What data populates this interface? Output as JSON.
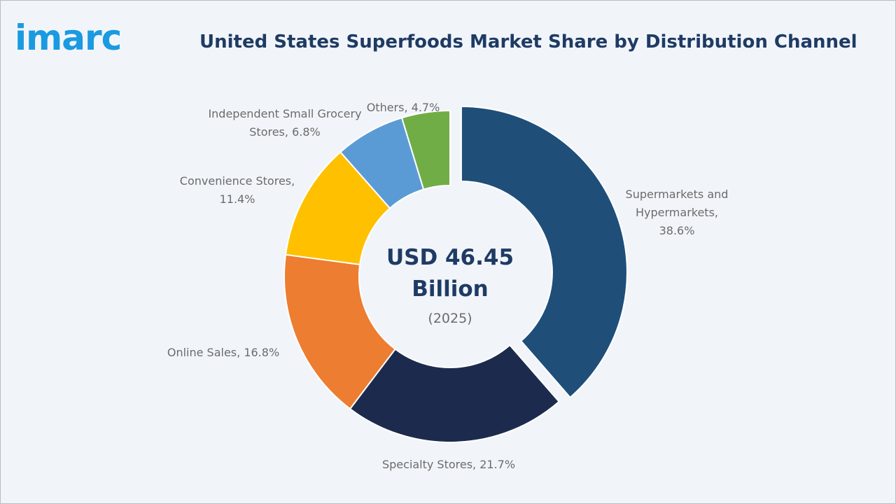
{
  "logo": "imarc",
  "colors": {
    "background": "#f1f5fa",
    "title": "#1f3b64",
    "logo": "#1a9ae0",
    "label": "#6b6b6b"
  },
  "chart_data": {
    "type": "pie",
    "title": "United States Superfoods Market Share by Distribution Channel",
    "center_text": [
      "USD 46.45",
      "Billion"
    ],
    "center_subtext": "(2025)",
    "slices": [
      {
        "name": "Supermarkets and Hypermarkets",
        "value": 38.6,
        "color": "#1f4e79",
        "label_lines": [
          "Supermarkets and",
          "Hypermarkets,",
          "38.6%"
        ],
        "exploded": true
      },
      {
        "name": "Specialty Stores",
        "value": 21.7,
        "color": "#1c2b4d",
        "label_lines": [
          "Specialty Stores, 21.7%"
        ],
        "exploded": false
      },
      {
        "name": "Online Sales",
        "value": 16.8,
        "color": "#ed7d31",
        "label_lines": [
          "Online Sales, 16.8%"
        ],
        "exploded": false
      },
      {
        "name": "Convenience Stores",
        "value": 11.4,
        "color": "#ffc000",
        "label_lines": [
          "Convenience Stores,",
          "11.4%"
        ],
        "exploded": false
      },
      {
        "name": "Independent Small Grocery Stores",
        "value": 6.8,
        "color": "#5b9bd5",
        "label_lines": [
          "Independent Small Grocery",
          "Stores, 6.8%"
        ],
        "exploded": false
      },
      {
        "name": "Others",
        "value": 4.7,
        "color": "#70ad47",
        "label_lines": [
          "Others, 4.7%"
        ],
        "exploded": false
      }
    ]
  }
}
